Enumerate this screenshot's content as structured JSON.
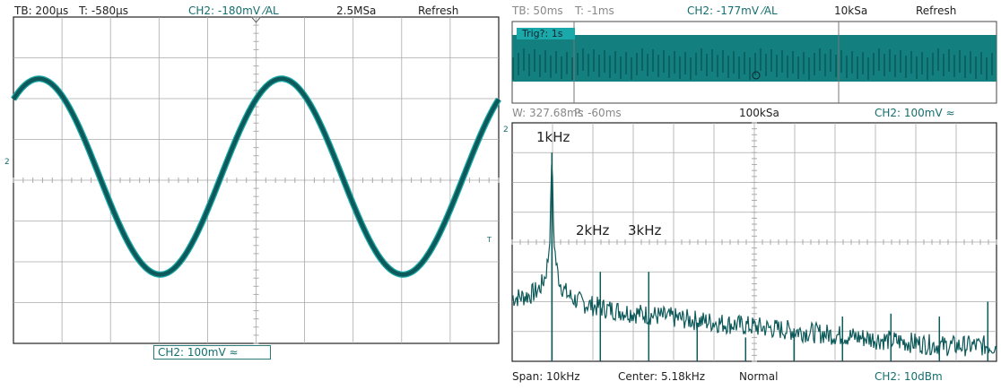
{
  "left_panel": {
    "timebase": "TB: 200µs",
    "trigger_time": "T: -580µs",
    "trigger_level": "CH2: -180mV ⁄AL",
    "sample_rate": "2.5MSa",
    "mode": "Refresh",
    "channel_scale": "CH2: 100mV ≈",
    "marker": "2",
    "trigger_marker": "T"
  },
  "right_top": {
    "timebase": "TB: 50ms",
    "trigger_time": "T: -1ms",
    "trigger_level": "CH2: -177mV ⁄AL",
    "sample_rate": "10kSa",
    "mode": "Refresh",
    "trig_status": "Trig?: 1s"
  },
  "right_fft_header": {
    "window": "W: 327.68ms",
    "position": "P: -60ms",
    "sample_rate": "100kSa",
    "channel_scale": "CH2: 100mV ≈",
    "marker": "2"
  },
  "right_fft_footer": {
    "span": "Span: 10kHz",
    "center": "Center: 5.18kHz",
    "mode": "Normal",
    "channel_scale": "CH2: 10dBm"
  },
  "colors": {
    "trace": "#0e5a5a",
    "trace_edge": "#1aa8a8",
    "grid": "#aaaaaa",
    "accent": "#156e6e"
  },
  "chart_data": [
    {
      "type": "line",
      "title": "",
      "x_unit": "µs",
      "y_unit": "mV",
      "x_divisions": 10,
      "y_divisions": 8,
      "time_per_div_us": 200,
      "volts_per_div_mV": 100,
      "series": [
        {
          "frequency_hz": 1000,
          "amplitude_mV": 240,
          "offset_mV": 0
        }
      ],
      "grid": true
    },
    {
      "type": "line",
      "title": "",
      "x_unit": "kHz",
      "xlim": [
        0.18,
        10.18
      ],
      "y_divisions": 8,
      "labels": [
        "1kHz",
        "2kHz",
        "3kHz"
      ],
      "peaks": [
        {
          "x": 1.0,
          "level_div": 7.0
        },
        {
          "x": 2.0,
          "level_div": 3.0
        },
        {
          "x": 3.0,
          "level_div": 3.0
        },
        {
          "x": 4.0,
          "level_div": 1.3
        },
        {
          "x": 5.0,
          "level_div": 0.8
        },
        {
          "x": 6.0,
          "level_div": 1.1
        },
        {
          "x": 7.0,
          "level_div": 1.5
        },
        {
          "x": 8.0,
          "level_div": 1.6
        },
        {
          "x": 9.0,
          "level_div": 1.5
        },
        {
          "x": 10.0,
          "level_div": 2.0
        }
      ],
      "grid": true
    }
  ]
}
